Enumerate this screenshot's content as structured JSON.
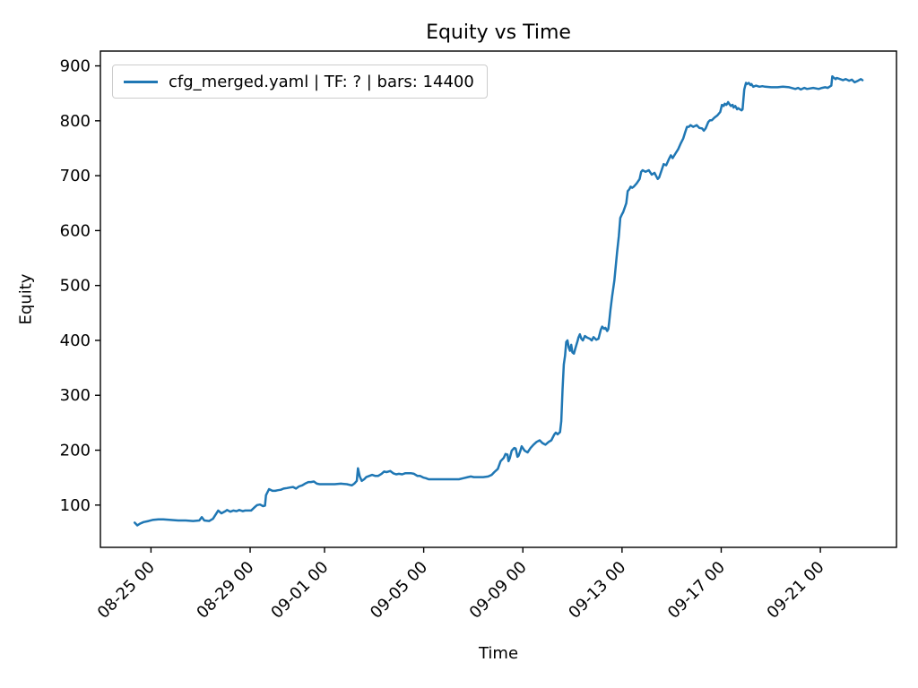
{
  "figure": {
    "background": "#ffffff"
  },
  "chart_data": {
    "type": "line",
    "title": "Equity vs Time",
    "xlabel": "Time",
    "ylabel": "Equity",
    "legend": [
      "cfg_merged.yaml | TF: ? | bars: 14400"
    ],
    "legend_position": "upper left",
    "grid": false,
    "line_color": "#1f77b4",
    "axis_color": "#000000",
    "x_unit": "days since 08-25 00:00",
    "xlim": [
      -2.04,
      30.07
    ],
    "ylim": [
      23,
      927
    ],
    "y_ticks": [
      100,
      200,
      300,
      400,
      500,
      600,
      700,
      800,
      900
    ],
    "x_ticks": [
      {
        "t": 0,
        "label": "08-25 00"
      },
      {
        "t": 4,
        "label": "08-29 00"
      },
      {
        "t": 7,
        "label": "09-01 00"
      },
      {
        "t": 11,
        "label": "09-05 00"
      },
      {
        "t": 15,
        "label": "09-09 00"
      },
      {
        "t": 19,
        "label": "09-13 00"
      },
      {
        "t": 23,
        "label": "09-17 00"
      },
      {
        "t": 27,
        "label": "09-21 00"
      }
    ],
    "series": [
      {
        "name": "cfg_merged.yaml | TF: ? | bars: 14400",
        "points": [
          [
            -0.66,
            68
          ],
          [
            -0.55,
            63
          ],
          [
            -0.45,
            66
          ],
          [
            -0.3,
            69
          ],
          [
            -0.1,
            71
          ],
          [
            0.06,
            73
          ],
          [
            0.3,
            74
          ],
          [
            0.5,
            74
          ],
          [
            0.8,
            73
          ],
          [
            1.1,
            72
          ],
          [
            1.4,
            72
          ],
          [
            1.7,
            71
          ],
          [
            1.95,
            72
          ],
          [
            2.05,
            78
          ],
          [
            2.15,
            72
          ],
          [
            2.35,
            71
          ],
          [
            2.5,
            75
          ],
          [
            2.6,
            82
          ],
          [
            2.71,
            90
          ],
          [
            2.84,
            85
          ],
          [
            3.0,
            89
          ],
          [
            3.07,
            91
          ],
          [
            3.2,
            88
          ],
          [
            3.32,
            90
          ],
          [
            3.45,
            89
          ],
          [
            3.56,
            91
          ],
          [
            3.7,
            89
          ],
          [
            3.8,
            90
          ],
          [
            4.04,
            90
          ],
          [
            4.2,
            97
          ],
          [
            4.28,
            100
          ],
          [
            4.4,
            101
          ],
          [
            4.52,
            98
          ],
          [
            4.6,
            99
          ],
          [
            4.64,
            118
          ],
          [
            4.76,
            129
          ],
          [
            4.9,
            126
          ],
          [
            5.01,
            126
          ],
          [
            5.1,
            127
          ],
          [
            5.24,
            128
          ],
          [
            5.35,
            130
          ],
          [
            5.49,
            131
          ],
          [
            5.6,
            132
          ],
          [
            5.73,
            133
          ],
          [
            5.85,
            130
          ],
          [
            5.97,
            134
          ],
          [
            6.1,
            136
          ],
          [
            6.21,
            139
          ],
          [
            6.35,
            142
          ],
          [
            6.45,
            142
          ],
          [
            6.57,
            143
          ],
          [
            6.69,
            139
          ],
          [
            6.8,
            138
          ],
          [
            6.93,
            138
          ],
          [
            7.18,
            138
          ],
          [
            7.41,
            138
          ],
          [
            7.66,
            139
          ],
          [
            7.9,
            138
          ],
          [
            8.1,
            136
          ],
          [
            8.2,
            139
          ],
          [
            8.3,
            144
          ],
          [
            8.35,
            167
          ],
          [
            8.42,
            152
          ],
          [
            8.5,
            144
          ],
          [
            8.6,
            147
          ],
          [
            8.68,
            151
          ],
          [
            8.8,
            153
          ],
          [
            8.92,
            155
          ],
          [
            9.05,
            153
          ],
          [
            9.16,
            153
          ],
          [
            9.3,
            157
          ],
          [
            9.4,
            161
          ],
          [
            9.5,
            160
          ],
          [
            9.65,
            162
          ],
          [
            9.77,
            158
          ],
          [
            9.89,
            156
          ],
          [
            10.0,
            157
          ],
          [
            10.13,
            156
          ],
          [
            10.25,
            158
          ],
          [
            10.37,
            158
          ],
          [
            10.5,
            158
          ],
          [
            10.61,
            157
          ],
          [
            10.75,
            153
          ],
          [
            10.85,
            153
          ],
          [
            11.0,
            150
          ],
          [
            11.09,
            149
          ],
          [
            11.2,
            147
          ],
          [
            11.33,
            147
          ],
          [
            11.6,
            147
          ],
          [
            11.9,
            147
          ],
          [
            12.2,
            147
          ],
          [
            12.42,
            147
          ],
          [
            12.6,
            149
          ],
          [
            12.78,
            151
          ],
          [
            12.9,
            152
          ],
          [
            13.02,
            151
          ],
          [
            13.2,
            151
          ],
          [
            13.4,
            151
          ],
          [
            13.6,
            152
          ],
          [
            13.74,
            155
          ],
          [
            13.85,
            160
          ],
          [
            13.99,
            166
          ],
          [
            14.1,
            180
          ],
          [
            14.23,
            186
          ],
          [
            14.3,
            193
          ],
          [
            14.38,
            192
          ],
          [
            14.42,
            180
          ],
          [
            14.47,
            185
          ],
          [
            14.55,
            199
          ],
          [
            14.65,
            204
          ],
          [
            14.71,
            203
          ],
          [
            14.78,
            188
          ],
          [
            14.83,
            190
          ],
          [
            14.9,
            199
          ],
          [
            14.95,
            207
          ],
          [
            15.07,
            199
          ],
          [
            15.19,
            196
          ],
          [
            15.31,
            204
          ],
          [
            15.43,
            210
          ],
          [
            15.55,
            215
          ],
          [
            15.68,
            218
          ],
          [
            15.79,
            213
          ],
          [
            15.91,
            210
          ],
          [
            16.04,
            215
          ],
          [
            16.15,
            218
          ],
          [
            16.27,
            229
          ],
          [
            16.33,
            232
          ],
          [
            16.4,
            229
          ],
          [
            16.5,
            233
          ],
          [
            16.55,
            253
          ],
          [
            16.6,
            310
          ],
          [
            16.65,
            356
          ],
          [
            16.7,
            372
          ],
          [
            16.75,
            397
          ],
          [
            16.8,
            400
          ],
          [
            16.85,
            387
          ],
          [
            16.9,
            381
          ],
          [
            16.95,
            392
          ],
          [
            17.0,
            378
          ],
          [
            17.06,
            376
          ],
          [
            17.12,
            386
          ],
          [
            17.2,
            398
          ],
          [
            17.24,
            405
          ],
          [
            17.3,
            411
          ],
          [
            17.36,
            403
          ],
          [
            17.42,
            400
          ],
          [
            17.5,
            408
          ],
          [
            17.6,
            405
          ],
          [
            17.7,
            403
          ],
          [
            17.78,
            400
          ],
          [
            17.85,
            406
          ],
          [
            17.96,
            401
          ],
          [
            18.05,
            403
          ],
          [
            18.14,
            419
          ],
          [
            18.2,
            425
          ],
          [
            18.28,
            421
          ],
          [
            18.33,
            423
          ],
          [
            18.4,
            417
          ],
          [
            18.45,
            421
          ],
          [
            18.48,
            433
          ],
          [
            18.53,
            455
          ],
          [
            18.6,
            480
          ],
          [
            18.69,
            509
          ],
          [
            18.8,
            560
          ],
          [
            18.87,
            590
          ],
          [
            18.93,
            623
          ],
          [
            18.99,
            629
          ],
          [
            19.05,
            634
          ],
          [
            19.17,
            650
          ],
          [
            19.23,
            672
          ],
          [
            19.29,
            675
          ],
          [
            19.35,
            680
          ],
          [
            19.41,
            678
          ],
          [
            19.47,
            680
          ],
          [
            19.59,
            686
          ],
          [
            19.71,
            694
          ],
          [
            19.77,
            707
          ],
          [
            19.83,
            710
          ],
          [
            19.95,
            707
          ],
          [
            20.08,
            710
          ],
          [
            20.2,
            702
          ],
          [
            20.31,
            705
          ],
          [
            20.38,
            699
          ],
          [
            20.44,
            694
          ],
          [
            20.5,
            697
          ],
          [
            20.56,
            705
          ],
          [
            20.68,
            721
          ],
          [
            20.78,
            719
          ],
          [
            20.89,
            730
          ],
          [
            20.97,
            737
          ],
          [
            21.04,
            732
          ],
          [
            21.15,
            740
          ],
          [
            21.26,
            748
          ],
          [
            21.36,
            758
          ],
          [
            21.47,
            768
          ],
          [
            21.54,
            778
          ],
          [
            21.62,
            789
          ],
          [
            21.69,
            789
          ],
          [
            21.76,
            792
          ],
          [
            21.87,
            789
          ],
          [
            22.01,
            792
          ],
          [
            22.12,
            787
          ],
          [
            22.23,
            786
          ],
          [
            22.3,
            782
          ],
          [
            22.37,
            786
          ],
          [
            22.48,
            798
          ],
          [
            22.55,
            801
          ],
          [
            22.62,
            801
          ],
          [
            22.73,
            806
          ],
          [
            22.85,
            810
          ],
          [
            22.96,
            816
          ],
          [
            23.03,
            829
          ],
          [
            23.1,
            827
          ],
          [
            23.14,
            831
          ],
          [
            23.21,
            829
          ],
          [
            23.28,
            834
          ],
          [
            23.32,
            831
          ],
          [
            23.39,
            827
          ],
          [
            23.46,
            829
          ],
          [
            23.5,
            824
          ],
          [
            23.57,
            827
          ],
          [
            23.64,
            821
          ],
          [
            23.68,
            823
          ],
          [
            23.82,
            819
          ],
          [
            23.86,
            821
          ],
          [
            23.93,
            857
          ],
          [
            24.0,
            869
          ],
          [
            24.04,
            867
          ],
          [
            24.11,
            869
          ],
          [
            24.18,
            865
          ],
          [
            24.22,
            867
          ],
          [
            24.29,
            862
          ],
          [
            24.4,
            864
          ],
          [
            24.54,
            862
          ],
          [
            24.66,
            863
          ],
          [
            24.77,
            862
          ],
          [
            25.02,
            861
          ],
          [
            25.27,
            861
          ],
          [
            25.49,
            862
          ],
          [
            25.74,
            861
          ],
          [
            25.99,
            858
          ],
          [
            26.1,
            860
          ],
          [
            26.21,
            857
          ],
          [
            26.35,
            860
          ],
          [
            26.46,
            858
          ],
          [
            26.71,
            860
          ],
          [
            26.93,
            858
          ],
          [
            27.07,
            860
          ],
          [
            27.19,
            861
          ],
          [
            27.3,
            860
          ],
          [
            27.44,
            864
          ],
          [
            27.48,
            881
          ],
          [
            27.55,
            878
          ],
          [
            27.62,
            876
          ],
          [
            27.66,
            878
          ],
          [
            27.8,
            876
          ],
          [
            27.91,
            874
          ],
          [
            28.02,
            876
          ],
          [
            28.16,
            873
          ],
          [
            28.27,
            875
          ],
          [
            28.38,
            870
          ],
          [
            28.52,
            873
          ],
          [
            28.63,
            876
          ],
          [
            28.7,
            874
          ]
        ]
      }
    ]
  }
}
